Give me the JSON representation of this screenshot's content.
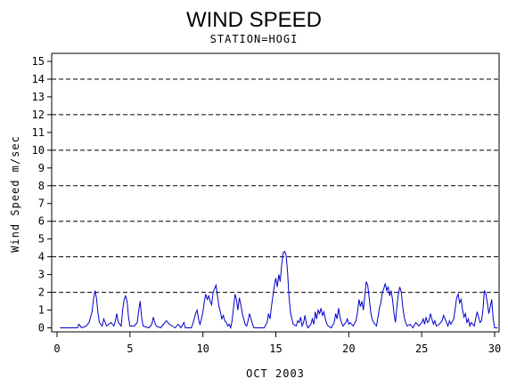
{
  "chart_data": {
    "type": "line",
    "title": "WIND SPEED",
    "subtitle": "STATION=HOGI",
    "xlabel": "OCT 2003",
    "ylabel": "Wind Speed m/sec",
    "xlim": [
      0,
      30
    ],
    "ylim": [
      0,
      15
    ],
    "x_ticks": [
      0,
      5,
      10,
      15,
      20,
      25,
      30
    ],
    "y_ticks": [
      0,
      1,
      2,
      3,
      4,
      5,
      6,
      7,
      8,
      9,
      10,
      11,
      12,
      13,
      14,
      15
    ],
    "reference_lines": [
      2,
      4,
      6,
      8,
      10,
      12,
      14
    ],
    "line_color": "#0000cc",
    "series": [
      {
        "points": [
          [
            0.2,
            0
          ],
          [
            1.4,
            0
          ],
          [
            1.5,
            0.2
          ],
          [
            1.7,
            0
          ],
          [
            2.0,
            0.1
          ],
          [
            2.2,
            0.3
          ],
          [
            2.4,
            0.9
          ],
          [
            2.5,
            1.6
          ],
          [
            2.6,
            2.1
          ],
          [
            2.7,
            1.7
          ],
          [
            2.8,
            0.9
          ],
          [
            2.9,
            0.3
          ],
          [
            3.1,
            0.1
          ],
          [
            3.2,
            0.5
          ],
          [
            3.4,
            0.1
          ],
          [
            3.7,
            0.3
          ],
          [
            3.9,
            0.1
          ],
          [
            4.0,
            0.4
          ],
          [
            4.1,
            0.8
          ],
          [
            4.2,
            0.3
          ],
          [
            4.4,
            0.1
          ],
          [
            4.5,
            1.0
          ],
          [
            4.6,
            1.6
          ],
          [
            4.7,
            1.8
          ],
          [
            4.8,
            1.5
          ],
          [
            4.9,
            0.6
          ],
          [
            5.0,
            0.1
          ],
          [
            5.3,
            0.1
          ],
          [
            5.5,
            0.3
          ],
          [
            5.6,
            1.0
          ],
          [
            5.7,
            1.5
          ],
          [
            5.8,
            0.6
          ],
          [
            5.9,
            0.1
          ],
          [
            6.3,
            0
          ],
          [
            6.5,
            0.2
          ],
          [
            6.6,
            0.6
          ],
          [
            6.7,
            0.3
          ],
          [
            6.8,
            0.1
          ],
          [
            7.1,
            0
          ],
          [
            7.3,
            0.2
          ],
          [
            7.5,
            0.4
          ],
          [
            7.7,
            0.2
          ],
          [
            7.9,
            0.1
          ],
          [
            8.1,
            0
          ],
          [
            8.3,
            0.2
          ],
          [
            8.5,
            0
          ],
          [
            8.7,
            0.3
          ],
          [
            8.8,
            0
          ],
          [
            9.2,
            0
          ],
          [
            9.3,
            0.2
          ],
          [
            9.5,
            0.8
          ],
          [
            9.6,
            1.0
          ],
          [
            9.7,
            0.5
          ],
          [
            9.8,
            0.2
          ],
          [
            9.9,
            0.5
          ],
          [
            10.0,
            0.9
          ],
          [
            10.1,
            1.5
          ],
          [
            10.2,
            1.9
          ],
          [
            10.3,
            1.6
          ],
          [
            10.4,
            1.8
          ],
          [
            10.5,
            1.5
          ],
          [
            10.6,
            1.3
          ],
          [
            10.7,
            2.0
          ],
          [
            10.8,
            2.2
          ],
          [
            10.9,
            2.4
          ],
          [
            11.0,
            1.8
          ],
          [
            11.1,
            1.2
          ],
          [
            11.2,
            0.9
          ],
          [
            11.3,
            0.5
          ],
          [
            11.4,
            0.7
          ],
          [
            11.5,
            0.4
          ],
          [
            11.6,
            0.3
          ],
          [
            11.7,
            0.1
          ],
          [
            11.8,
            0.2
          ],
          [
            11.9,
            0
          ],
          [
            12.0,
            0.4
          ],
          [
            12.1,
            1.1
          ],
          [
            12.2,
            1.9
          ],
          [
            12.3,
            1.6
          ],
          [
            12.4,
            1.0
          ],
          [
            12.5,
            1.7
          ],
          [
            12.6,
            1.3
          ],
          [
            12.7,
            0.8
          ],
          [
            12.8,
            0.5
          ],
          [
            12.9,
            0.2
          ],
          [
            13.0,
            0.1
          ],
          [
            13.1,
            0.4
          ],
          [
            13.2,
            0.8
          ],
          [
            13.3,
            0.5
          ],
          [
            13.4,
            0.2
          ],
          [
            13.5,
            0
          ],
          [
            14.2,
            0
          ],
          [
            14.4,
            0.3
          ],
          [
            14.5,
            0.8
          ],
          [
            14.6,
            0.5
          ],
          [
            14.7,
            1.2
          ],
          [
            14.8,
            1.8
          ],
          [
            14.9,
            2.4
          ],
          [
            15.0,
            2.8
          ],
          [
            15.1,
            2.3
          ],
          [
            15.2,
            3.0
          ],
          [
            15.3,
            2.6
          ],
          [
            15.4,
            3.5
          ],
          [
            15.5,
            4.2
          ],
          [
            15.6,
            4.3
          ],
          [
            15.7,
            4.1
          ],
          [
            15.8,
            3.2
          ],
          [
            15.9,
            1.8
          ],
          [
            16.0,
            0.9
          ],
          [
            16.1,
            0.5
          ],
          [
            16.2,
            0.2
          ],
          [
            16.4,
            0.1
          ],
          [
            16.5,
            0.4
          ],
          [
            16.6,
            0.3
          ],
          [
            16.7,
            0.6
          ],
          [
            16.8,
            0.1
          ],
          [
            16.9,
            0.3
          ],
          [
            17.0,
            0.7
          ],
          [
            17.1,
            0.2
          ],
          [
            17.2,
            0
          ],
          [
            17.4,
            0.2
          ],
          [
            17.5,
            0.5
          ],
          [
            17.6,
            0.2
          ],
          [
            17.7,
            0.9
          ],
          [
            17.8,
            0.5
          ],
          [
            17.9,
            1.0
          ],
          [
            18.0,
            0.8
          ],
          [
            18.1,
            1.1
          ],
          [
            18.2,
            0.7
          ],
          [
            18.3,
            0.9
          ],
          [
            18.4,
            0.5
          ],
          [
            18.5,
            0.2
          ],
          [
            18.6,
            0.1
          ],
          [
            18.8,
            0
          ],
          [
            19.0,
            0.3
          ],
          [
            19.1,
            0.8
          ],
          [
            19.2,
            0.5
          ],
          [
            19.3,
            1.1
          ],
          [
            19.4,
            0.6
          ],
          [
            19.5,
            0.3
          ],
          [
            19.6,
            0.1
          ],
          [
            19.8,
            0.3
          ],
          [
            19.9,
            0.5
          ],
          [
            20.0,
            0.2
          ],
          [
            20.1,
            0.3
          ],
          [
            20.3,
            0.1
          ],
          [
            20.5,
            0.4
          ],
          [
            20.6,
            0.9
          ],
          [
            20.7,
            1.6
          ],
          [
            20.8,
            1.2
          ],
          [
            20.9,
            1.5
          ],
          [
            21.0,
            1.0
          ],
          [
            21.1,
            1.8
          ],
          [
            21.2,
            2.6
          ],
          [
            21.3,
            2.4
          ],
          [
            21.4,
            1.7
          ],
          [
            21.5,
            0.9
          ],
          [
            21.6,
            0.5
          ],
          [
            21.7,
            0.3
          ],
          [
            21.8,
            0.2
          ],
          [
            21.9,
            0.1
          ],
          [
            22.0,
            0.6
          ],
          [
            22.1,
            1.1
          ],
          [
            22.2,
            1.4
          ],
          [
            22.3,
            2.0
          ],
          [
            22.4,
            2.2
          ],
          [
            22.5,
            2.5
          ],
          [
            22.6,
            2.1
          ],
          [
            22.7,
            2.3
          ],
          [
            22.8,
            1.8
          ],
          [
            22.9,
            2.1
          ],
          [
            23.0,
            1.6
          ],
          [
            23.1,
            0.8
          ],
          [
            23.2,
            0.3
          ],
          [
            23.3,
            1.2
          ],
          [
            23.4,
            1.9
          ],
          [
            23.5,
            2.3
          ],
          [
            23.6,
            2.0
          ],
          [
            23.7,
            1.2
          ],
          [
            23.8,
            0.6
          ],
          [
            23.9,
            0.3
          ],
          [
            24.0,
            0.1
          ],
          [
            24.2,
            0.2
          ],
          [
            24.4,
            0
          ],
          [
            24.6,
            0.3
          ],
          [
            24.8,
            0.1
          ],
          [
            25.0,
            0.3
          ],
          [
            25.1,
            0.5
          ],
          [
            25.2,
            0.2
          ],
          [
            25.3,
            0.6
          ],
          [
            25.4,
            0.3
          ],
          [
            25.5,
            0.4
          ],
          [
            25.6,
            0.8
          ],
          [
            25.7,
            0.5
          ],
          [
            25.8,
            0.2
          ],
          [
            25.9,
            0.4
          ],
          [
            26.0,
            0.1
          ],
          [
            26.2,
            0.2
          ],
          [
            26.4,
            0.4
          ],
          [
            26.5,
            0.7
          ],
          [
            26.6,
            0.5
          ],
          [
            26.7,
            0.3
          ],
          [
            26.8,
            0.1
          ],
          [
            26.9,
            0.4
          ],
          [
            27.0,
            0.2
          ],
          [
            27.2,
            0.5
          ],
          [
            27.3,
            1.1
          ],
          [
            27.4,
            1.7
          ],
          [
            27.5,
            1.9
          ],
          [
            27.6,
            1.4
          ],
          [
            27.7,
            1.6
          ],
          [
            27.8,
            1.0
          ],
          [
            27.9,
            0.6
          ],
          [
            28.0,
            0.8
          ],
          [
            28.1,
            0.3
          ],
          [
            28.2,
            0.5
          ],
          [
            28.3,
            0.1
          ],
          [
            28.4,
            0.3
          ],
          [
            28.6,
            0.1
          ],
          [
            28.7,
            0.5
          ],
          [
            28.8,
            0.9
          ],
          [
            28.9,
            0.6
          ],
          [
            29.0,
            0.3
          ],
          [
            29.1,
            0.4
          ],
          [
            29.2,
            1.0
          ],
          [
            29.3,
            2.1
          ],
          [
            29.4,
            1.9
          ],
          [
            29.5,
            1.4
          ],
          [
            29.6,
            0.8
          ],
          [
            29.7,
            1.2
          ],
          [
            29.8,
            1.6
          ],
          [
            29.9,
            0.5
          ],
          [
            30.0,
            0
          ],
          [
            30.2,
            0
          ]
        ]
      }
    ]
  }
}
